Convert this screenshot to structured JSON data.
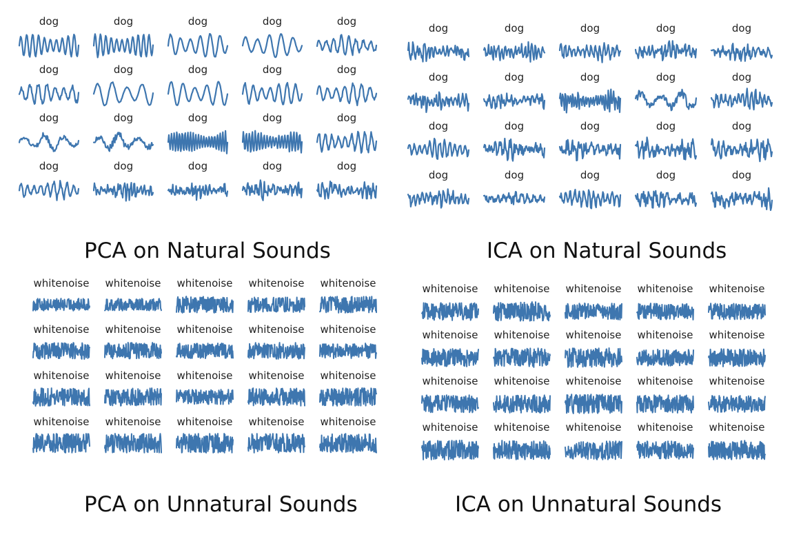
{
  "colors": {
    "series": "#3e76af",
    "label": "#222222",
    "caption": "#111111"
  },
  "chart_data": [
    {
      "type": "line",
      "title": "PCA on Natural Sounds",
      "grid_rows": 4,
      "grid_cols": 5,
      "panel_labels": [
        "dog",
        "dog",
        "dog",
        "dog",
        "dog",
        "dog",
        "dog",
        "dog",
        "dog",
        "dog",
        "dog",
        "dog",
        "dog",
        "dog",
        "dog",
        "dog",
        "dog",
        "dog",
        "dog",
        "dog"
      ],
      "waveforms": [
        {
          "cycles": 10,
          "noise": 0.05,
          "amp": 0.8
        },
        {
          "cycles": 11,
          "noise": 0.05,
          "amp": 0.8
        },
        {
          "cycles": 6,
          "noise": 0.06,
          "amp": 0.85
        },
        {
          "cycles": 5,
          "noise": 0.05,
          "amp": 0.85
        },
        {
          "cycles": 8,
          "noise": 0.25,
          "amp": 0.8
        },
        {
          "cycles": 7,
          "noise": 0.2,
          "amp": 0.85
        },
        {
          "cycles": 4,
          "noise": 0.05,
          "amp": 0.85
        },
        {
          "cycles": 5,
          "noise": 0.05,
          "amp": 0.85
        },
        {
          "cycles": 7,
          "noise": 0.1,
          "amp": 0.8
        },
        {
          "cycles": 7,
          "noise": 0.15,
          "amp": 0.8
        },
        {
          "cycles": 3,
          "noise": 0.3,
          "amp": 0.7
        },
        {
          "cycles": 3,
          "noise": 0.35,
          "amp": 0.75
        },
        {
          "cycles": 22,
          "noise": 0.1,
          "amp": 0.8
        },
        {
          "cycles": 20,
          "noise": 0.15,
          "amp": 0.8
        },
        {
          "cycles": 9,
          "noise": 0.2,
          "amp": 0.8
        },
        {
          "cycles": 9,
          "noise": 0.3,
          "amp": 0.7
        },
        {
          "cycles": 18,
          "noise": 0.6,
          "amp": 0.75
        },
        {
          "cycles": 16,
          "noise": 0.6,
          "amp": 0.75
        },
        {
          "cycles": 14,
          "noise": 0.6,
          "amp": 0.75
        },
        {
          "cycles": 14,
          "noise": 0.55,
          "amp": 0.75
        }
      ]
    },
    {
      "type": "line",
      "title": "ICA on Natural Sounds",
      "grid_rows": 4,
      "grid_cols": 5,
      "panel_labels": [
        "dog",
        "dog",
        "dog",
        "dog",
        "dog",
        "dog",
        "dog",
        "dog",
        "dog",
        "dog",
        "dog",
        "dog",
        "dog",
        "dog",
        "dog",
        "dog",
        "dog",
        "dog",
        "dog",
        "dog"
      ],
      "waveforms": [
        {
          "cycles": 16,
          "noise": 0.6,
          "amp": 0.8
        },
        {
          "cycles": 18,
          "noise": 0.5,
          "amp": 0.8
        },
        {
          "cycles": 14,
          "noise": 0.4,
          "amp": 0.7
        },
        {
          "cycles": 15,
          "noise": 0.6,
          "amp": 0.8
        },
        {
          "cycles": 12,
          "noise": 0.6,
          "amp": 0.7
        },
        {
          "cycles": 16,
          "noise": 0.6,
          "amp": 0.8
        },
        {
          "cycles": 14,
          "noise": 0.6,
          "amp": 0.6
        },
        {
          "cycles": 24,
          "noise": 0.4,
          "amp": 0.85
        },
        {
          "cycles": 3,
          "noise": 0.35,
          "amp": 0.8
        },
        {
          "cycles": 14,
          "noise": 0.5,
          "amp": 0.8
        },
        {
          "cycles": 12,
          "noise": 0.3,
          "amp": 0.8
        },
        {
          "cycles": 12,
          "noise": 0.6,
          "amp": 0.8
        },
        {
          "cycles": 10,
          "noise": 0.6,
          "amp": 0.8
        },
        {
          "cycles": 12,
          "noise": 0.6,
          "amp": 0.8
        },
        {
          "cycles": 11,
          "noise": 0.6,
          "amp": 0.8
        },
        {
          "cycles": 14,
          "noise": 0.5,
          "amp": 0.8
        },
        {
          "cycles": 10,
          "noise": 0.6,
          "amp": 0.6
        },
        {
          "cycles": 13,
          "noise": 0.4,
          "amp": 0.85
        },
        {
          "cycles": 10,
          "noise": 0.6,
          "amp": 0.75
        },
        {
          "cycles": 13,
          "noise": 0.6,
          "amp": 0.8
        }
      ]
    },
    {
      "type": "line",
      "title": "PCA on Unnatural Sounds",
      "grid_rows": 4,
      "grid_cols": 5,
      "panel_labels": [
        "whitenoise",
        "whitenoise",
        "whitenoise",
        "whitenoise",
        "whitenoise",
        "whitenoise",
        "whitenoise",
        "whitenoise",
        "whitenoise",
        "whitenoise",
        "whitenoise",
        "whitenoise",
        "whitenoise",
        "whitenoise",
        "whitenoise",
        "whitenoise",
        "whitenoise",
        "whitenoise",
        "whitenoise",
        "whitenoise"
      ],
      "waveforms": [
        {
          "cycles": 4,
          "noise": 1.0,
          "amp": 0.45
        },
        {
          "cycles": 4,
          "noise": 1.0,
          "amp": 0.45
        },
        {
          "cycles": 40,
          "noise": 1.0,
          "amp": 0.6
        },
        {
          "cycles": 40,
          "noise": 1.0,
          "amp": 0.55
        },
        {
          "cycles": 40,
          "noise": 1.0,
          "amp": 0.6
        },
        {
          "cycles": 40,
          "noise": 1.0,
          "amp": 0.6
        },
        {
          "cycles": 40,
          "noise": 1.0,
          "amp": 0.6
        },
        {
          "cycles": 40,
          "noise": 1.0,
          "amp": 0.55
        },
        {
          "cycles": 40,
          "noise": 1.0,
          "amp": 0.6
        },
        {
          "cycles": 40,
          "noise": 1.0,
          "amp": 0.55
        },
        {
          "cycles": 40,
          "noise": 1.0,
          "amp": 0.65
        },
        {
          "cycles": 40,
          "noise": 1.0,
          "amp": 0.65
        },
        {
          "cycles": 40,
          "noise": 1.0,
          "amp": 0.55
        },
        {
          "cycles": 40,
          "noise": 1.0,
          "amp": 0.65
        },
        {
          "cycles": 40,
          "noise": 1.0,
          "amp": 0.65
        },
        {
          "cycles": 40,
          "noise": 1.0,
          "amp": 0.7
        },
        {
          "cycles": 40,
          "noise": 1.0,
          "amp": 0.7
        },
        {
          "cycles": 40,
          "noise": 1.0,
          "amp": 0.7
        },
        {
          "cycles": 40,
          "noise": 1.0,
          "amp": 0.7
        },
        {
          "cycles": 40,
          "noise": 1.0,
          "amp": 0.7
        }
      ]
    },
    {
      "type": "line",
      "title": "ICA on Unnatural Sounds",
      "grid_rows": 4,
      "grid_cols": 5,
      "panel_labels": [
        "whitenoise",
        "whitenoise",
        "whitenoise",
        "whitenoise",
        "whitenoise",
        "whitenoise",
        "whitenoise",
        "whitenoise",
        "whitenoise",
        "whitenoise",
        "whitenoise",
        "whitenoise",
        "whitenoise",
        "whitenoise",
        "whitenoise",
        "whitenoise",
        "whitenoise",
        "whitenoise",
        "whitenoise",
        "whitenoise"
      ],
      "waveforms": [
        {
          "cycles": 40,
          "noise": 1.0,
          "amp": 0.65
        },
        {
          "cycles": 40,
          "noise": 1.0,
          "amp": 0.7
        },
        {
          "cycles": 40,
          "noise": 1.0,
          "amp": 0.6
        },
        {
          "cycles": 40,
          "noise": 1.0,
          "amp": 0.6
        },
        {
          "cycles": 40,
          "noise": 1.0,
          "amp": 0.6
        },
        {
          "cycles": 40,
          "noise": 1.0,
          "amp": 0.65
        },
        {
          "cycles": 40,
          "noise": 1.0,
          "amp": 0.7
        },
        {
          "cycles": 40,
          "noise": 1.0,
          "amp": 0.7
        },
        {
          "cycles": 40,
          "noise": 1.0,
          "amp": 0.6
        },
        {
          "cycles": 40,
          "noise": 1.0,
          "amp": 0.65
        },
        {
          "cycles": 40,
          "noise": 1.0,
          "amp": 0.65
        },
        {
          "cycles": 40,
          "noise": 1.0,
          "amp": 0.65
        },
        {
          "cycles": 40,
          "noise": 1.0,
          "amp": 0.7
        },
        {
          "cycles": 40,
          "noise": 1.0,
          "amp": 0.65
        },
        {
          "cycles": 40,
          "noise": 1.0,
          "amp": 0.6
        },
        {
          "cycles": 40,
          "noise": 1.0,
          "amp": 0.7
        },
        {
          "cycles": 40,
          "noise": 1.0,
          "amp": 0.7
        },
        {
          "cycles": 40,
          "noise": 1.0,
          "amp": 0.7
        },
        {
          "cycles": 40,
          "noise": 1.0,
          "amp": 0.65
        },
        {
          "cycles": 40,
          "noise": 1.0,
          "amp": 0.7
        }
      ]
    }
  ]
}
